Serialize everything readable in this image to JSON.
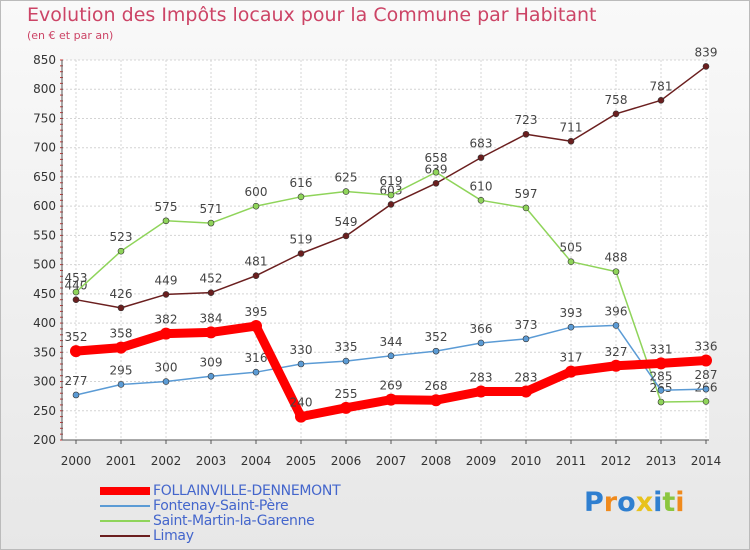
{
  "chart_data": {
    "type": "line",
    "title": "Evolution des Impôts locaux pour la Commune par Habitant",
    "subtitle": "(en € et par an)",
    "categories": [
      "2000",
      "2001",
      "2002",
      "2003",
      "2004",
      "2005",
      "2006",
      "2007",
      "2008",
      "2009",
      "2010",
      "2011",
      "2012",
      "2013",
      "2014"
    ],
    "ylim": [
      200,
      850
    ],
    "yticks": [
      200,
      250,
      300,
      350,
      400,
      450,
      500,
      550,
      600,
      650,
      700,
      750,
      800,
      850
    ],
    "grid": true,
    "legend_position": "bottom-left",
    "series": [
      {
        "name": "FOLLAINVILLE-DENNEMONT",
        "color": "#ff0000",
        "values": [
          352,
          358,
          382,
          384,
          395,
          240,
          255,
          269,
          268,
          283,
          283,
          317,
          327,
          331,
          336
        ]
      },
      {
        "name": "Fontenay-Saint-Père",
        "color": "#5b9bd5",
        "values": [
          277,
          295,
          300,
          309,
          316,
          330,
          335,
          344,
          352,
          366,
          373,
          393,
          396,
          285,
          287
        ]
      },
      {
        "name": "Saint-Martin-la-Garenne",
        "color": "#8fd45a",
        "values": [
          453,
          523,
          575,
          571,
          600,
          616,
          625,
          619,
          658,
          610,
          597,
          505,
          488,
          265,
          266
        ]
      },
      {
        "name": "Limay",
        "color": "#6b1f1f",
        "values": [
          440,
          426,
          449,
          452,
          481,
          519,
          549,
          603,
          639,
          683,
          723,
          711,
          758,
          781,
          839
        ]
      }
    ]
  },
  "logo": {
    "text": "Proxiti",
    "letters": [
      "P",
      "r",
      "o",
      "x",
      "i",
      "t",
      "i"
    ],
    "colors": [
      "#2f7fd0",
      "#f08a1c",
      "#2f7fd0",
      "#e8c21c",
      "#2f7fd0",
      "#8cc63f",
      "#f08a1c"
    ]
  }
}
